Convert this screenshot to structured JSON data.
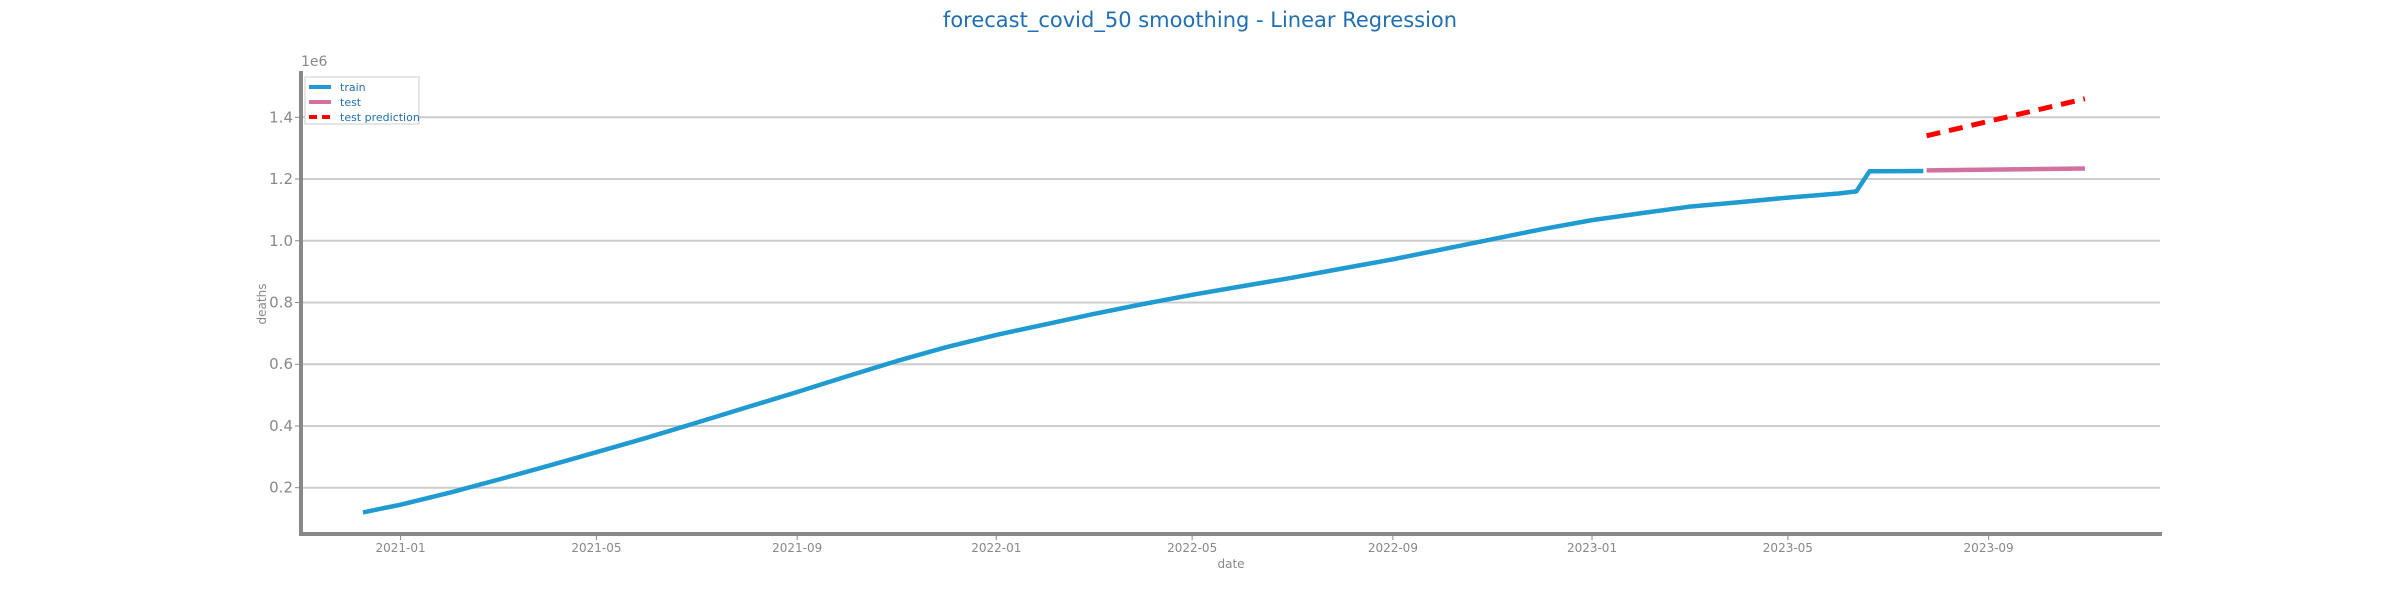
{
  "chart_data": {
    "type": "line",
    "title": "forecast_covid_50 smoothing - Linear Regression",
    "xlabel": "date",
    "ylabel": "deaths",
    "y_offset_label": "1e6",
    "y_scale_factor": 1000000,
    "xlim": [
      "2020-11-01",
      "2023-12-15"
    ],
    "ylim": [
      0.05,
      1.55
    ],
    "yticks": [
      0.2,
      0.4,
      0.6,
      0.8,
      1.0,
      1.2,
      1.4
    ],
    "ytick_labels": [
      "0.2",
      "0.4",
      "0.6",
      "0.8",
      "1.0",
      "1.2",
      "1.4"
    ],
    "xticks": [
      "2021-01-01",
      "2021-05-01",
      "2021-09-01",
      "2022-01-01",
      "2022-05-01",
      "2022-09-01",
      "2023-01-01",
      "2023-05-01",
      "2023-09-01"
    ],
    "xtick_labels": [
      "2021-01",
      "2021-05",
      "2021-09",
      "2022-01",
      "2022-05",
      "2022-09",
      "2023-01",
      "2023-05",
      "2023-09"
    ],
    "grid": "horizontal",
    "legend_position": "top-left",
    "series": [
      {
        "name": "train",
        "color": "#1f9bd1",
        "style": "solid",
        "points": [
          [
            "2020-12-09",
            0.12
          ],
          [
            "2021-01-01",
            0.145
          ],
          [
            "2021-02-01",
            0.185
          ],
          [
            "2021-03-01",
            0.225
          ],
          [
            "2021-04-01",
            0.27
          ],
          [
            "2021-05-01",
            0.315
          ],
          [
            "2021-06-01",
            0.362
          ],
          [
            "2021-07-01",
            0.41
          ],
          [
            "2021-08-01",
            0.46
          ],
          [
            "2021-09-01",
            0.51
          ],
          [
            "2021-10-01",
            0.56
          ],
          [
            "2021-11-01",
            0.61
          ],
          [
            "2021-12-01",
            0.655
          ],
          [
            "2022-01-01",
            0.695
          ],
          [
            "2022-02-01",
            0.73
          ],
          [
            "2022-03-01",
            0.762
          ],
          [
            "2022-04-01",
            0.795
          ],
          [
            "2022-05-01",
            0.825
          ],
          [
            "2022-06-01",
            0.853
          ],
          [
            "2022-07-01",
            0.88
          ],
          [
            "2022-08-01",
            0.91
          ],
          [
            "2022-09-01",
            0.94
          ],
          [
            "2022-10-01",
            0.972
          ],
          [
            "2022-11-01",
            1.005
          ],
          [
            "2022-12-01",
            1.037
          ],
          [
            "2023-01-01",
            1.067
          ],
          [
            "2023-02-01",
            1.09
          ],
          [
            "2023-03-01",
            1.11
          ],
          [
            "2023-04-01",
            1.125
          ],
          [
            "2023-05-01",
            1.14
          ],
          [
            "2023-06-01",
            1.153
          ],
          [
            "2023-06-12",
            1.16
          ],
          [
            "2023-06-20",
            1.225
          ],
          [
            "2023-07-23",
            1.226
          ]
        ]
      },
      {
        "name": "test",
        "color": "#d1719f",
        "style": "solid",
        "points": [
          [
            "2023-07-25",
            1.228
          ],
          [
            "2023-10-30",
            1.234
          ]
        ]
      },
      {
        "name": "test prediction",
        "color": "#ff0000",
        "style": "dashed",
        "points": [
          [
            "2023-07-25",
            1.34
          ],
          [
            "2023-10-30",
            1.46
          ]
        ]
      }
    ]
  }
}
